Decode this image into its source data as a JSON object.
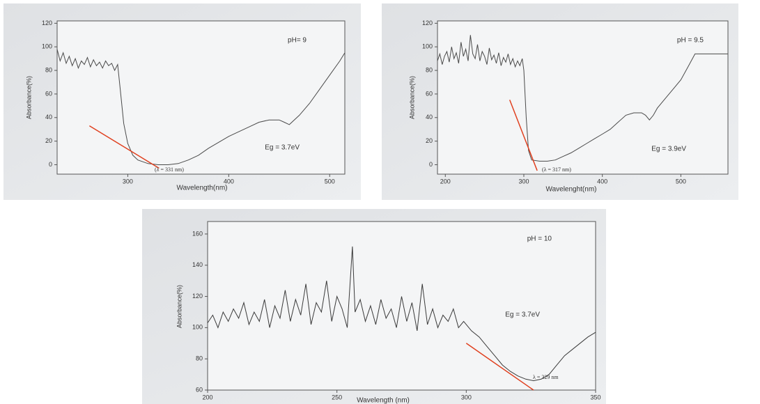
{
  "chart_data": [
    {
      "type": "line",
      "title": "pH= 9",
      "annotation": "Eg = 3.7eV",
      "lambda_label": "(λ = 331 nm)",
      "x_label": "Wavelength(nm)",
      "y_label": "Absorbance(%)",
      "xlim": [
        230,
        515
      ],
      "ylim": [
        -8,
        122
      ],
      "xticks": [
        300,
        400,
        500
      ],
      "yticks": [
        0,
        20,
        40,
        60,
        80,
        100,
        120
      ],
      "x": [
        230,
        233,
        236,
        239,
        242,
        245,
        248,
        251,
        254,
        257,
        260,
        263,
        266,
        269,
        272,
        275,
        278,
        281,
        284,
        287,
        290,
        293,
        296,
        300,
        305,
        310,
        320,
        330,
        340,
        350,
        360,
        370,
        380,
        390,
        400,
        410,
        420,
        430,
        440,
        450,
        455,
        460,
        470,
        480,
        490,
        500,
        510,
        515
      ],
      "series": [
        {
          "color": "#4a4a4a",
          "values": [
            98,
            88,
            95,
            86,
            92,
            84,
            90,
            82,
            88,
            85,
            91,
            83,
            89,
            84,
            87,
            82,
            88,
            84,
            86,
            80,
            85,
            60,
            35,
            18,
            8,
            4,
            1,
            0,
            0,
            1,
            4,
            8,
            14,
            19,
            24,
            28,
            32,
            36,
            38,
            38,
            36,
            34,
            42,
            52,
            64,
            76,
            88,
            95
          ]
        }
      ],
      "tangent": {
        "color": "#e0401f",
        "x": [
          262,
          331
        ],
        "values": [
          33,
          -3
        ]
      }
    },
    {
      "type": "line",
      "title": "pH = 9.5",
      "annotation": "Eg = 3.9eV",
      "lambda_label": "(λ = 317 nm)",
      "x_label": "Wavelenght(nm)",
      "y_label": "Absorbance(%)",
      "xlim": [
        190,
        560
      ],
      "ylim": [
        -8,
        122
      ],
      "xticks": [
        200,
        300,
        400,
        500
      ],
      "yticks": [
        0,
        20,
        40,
        60,
        80,
        100,
        120
      ],
      "x": [
        190,
        193,
        196,
        199,
        202,
        205,
        208,
        211,
        214,
        217,
        220,
        223,
        226,
        229,
        232,
        235,
        238,
        241,
        244,
        247,
        250,
        253,
        256,
        259,
        262,
        265,
        268,
        271,
        274,
        277,
        280,
        283,
        286,
        289,
        292,
        295,
        298,
        300,
        303,
        306,
        310,
        320,
        330,
        340,
        350,
        360,
        370,
        380,
        390,
        400,
        410,
        420,
        430,
        440,
        450,
        455,
        460,
        465,
        470,
        480,
        490,
        500,
        510,
        518,
        530,
        545,
        560
      ],
      "series": [
        {
          "color": "#4a4a4a",
          "values": [
            88,
            94,
            85,
            92,
            96,
            87,
            100,
            90,
            95,
            86,
            104,
            92,
            98,
            88,
            110,
            94,
            90,
            102,
            88,
            96,
            92,
            85,
            99,
            89,
            93,
            86,
            95,
            84,
            91,
            87,
            94,
            85,
            90,
            83,
            88,
            84,
            90,
            80,
            40,
            12,
            4,
            3,
            3,
            4,
            7,
            10,
            14,
            18,
            22,
            26,
            30,
            36,
            42,
            44,
            44,
            42,
            38,
            42,
            48,
            56,
            64,
            72,
            84,
            94,
            94,
            94,
            94
          ]
        }
      ],
      "tangent": {
        "color": "#e0401f",
        "x": [
          282,
          317
        ],
        "values": [
          55,
          -5
        ]
      }
    },
    {
      "type": "line",
      "title": "pH = 10",
      "annotation": "Eg = 3.7eV",
      "lambda_label": "λ = 329 nm",
      "x_label": "Wavelength (nm)",
      "y_label": "Absorbance(%)",
      "xlim": [
        200,
        350
      ],
      "ylim": [
        60,
        168
      ],
      "xticks": [
        200,
        250,
        300,
        350
      ],
      "yticks": [
        60,
        80,
        100,
        120,
        140,
        160
      ],
      "x": [
        200,
        202,
        204,
        206,
        208,
        210,
        212,
        214,
        216,
        218,
        220,
        222,
        224,
        226,
        228,
        230,
        232,
        234,
        236,
        238,
        240,
        242,
        244,
        246,
        248,
        250,
        252,
        254,
        256,
        257,
        259,
        261,
        263,
        265,
        267,
        269,
        271,
        273,
        275,
        277,
        279,
        281,
        283,
        285,
        287,
        289,
        291,
        293,
        295,
        297,
        299,
        302,
        305,
        308,
        311,
        314,
        317,
        320,
        323,
        326,
        329,
        332,
        335,
        338,
        341,
        344,
        347,
        350
      ],
      "series": [
        {
          "color": "#3a3a3a",
          "values": [
            103,
            108,
            100,
            110,
            104,
            112,
            106,
            116,
            102,
            110,
            104,
            118,
            100,
            114,
            106,
            124,
            104,
            118,
            108,
            128,
            102,
            116,
            110,
            130,
            104,
            120,
            112,
            100,
            152,
            110,
            118,
            104,
            114,
            102,
            118,
            106,
            112,
            100,
            120,
            104,
            116,
            98,
            128,
            102,
            112,
            100,
            108,
            104,
            112,
            100,
            104,
            98,
            94,
            88,
            82,
            76,
            72,
            69,
            67,
            66,
            67,
            70,
            76,
            82,
            86,
            90,
            94,
            97
          ]
        }
      ],
      "tangent": {
        "color": "#e0401f",
        "x": [
          300,
          326
        ],
        "values": [
          90,
          60
        ]
      }
    }
  ]
}
